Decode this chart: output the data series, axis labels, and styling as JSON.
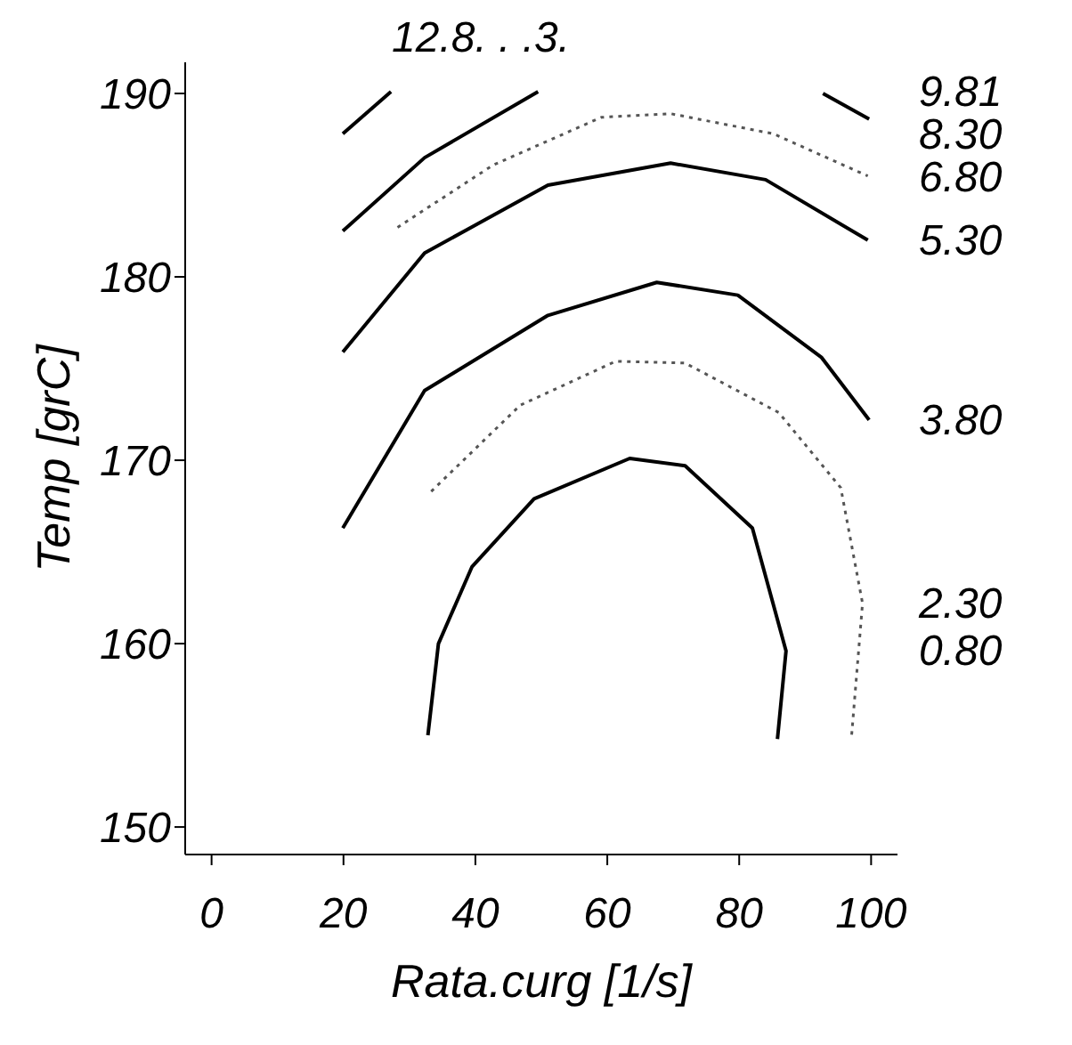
{
  "chart_data": {
    "type": "line",
    "xlabel": "Rata.curg [1/s]",
    "ylabel": "Temp [grC]",
    "xlim": [
      -4,
      104
    ],
    "xticks": [
      0,
      20,
      40,
      60,
      80,
      100
    ],
    "ylim": [
      148.5,
      191.7
    ],
    "yticks": [
      150,
      160,
      170,
      180,
      190
    ],
    "marker": "none",
    "annotations": [
      "12.8. . .3."
    ],
    "series": [
      {
        "name": "9.81",
        "color": "#000000",
        "line_style": "solid",
        "x": [
          19.9,
          27.2
        ],
        "values": [
          187.8,
          190.1
        ]
      },
      {
        "name": "8.30",
        "color": "#000000",
        "line_style": "solid",
        "x": [
          19.9,
          32.3,
          49.5,
          70,
          92.7,
          99.7
        ],
        "values": [
          182.5,
          186.5,
          190.1,
          null,
          190.0,
          188.6
        ]
      },
      {
        "name": "6.80",
        "color": "#555555",
        "line_style": "dotted",
        "x": [
          28.2,
          42.7,
          59.1,
          69.6,
          85.2,
          99.5
        ],
        "values": [
          182.7,
          186.1,
          188.7,
          188.9,
          187.8,
          185.5
        ]
      },
      {
        "name": "5.30",
        "color": "#000000",
        "line_style": "solid",
        "x": [
          19.9,
          32.3,
          51,
          69.6,
          84,
          99.5
        ],
        "values": [
          175.9,
          181.3,
          185.0,
          186.2,
          185.3,
          182.0
        ]
      },
      {
        "name": "3.80",
        "color": "#000000",
        "line_style": "solid",
        "x": [
          19.9,
          32.3,
          51,
          67.5,
          79.8,
          92.5,
          99.7
        ],
        "values": [
          166.3,
          173.8,
          177.9,
          179.7,
          179.0,
          175.6,
          172.2
        ]
      },
      {
        "name": "2.30",
        "color": "#555555",
        "line_style": "dotted",
        "x": [
          33.3,
          46.8,
          61.3,
          71.8,
          86,
          95.4,
          98.7,
          97
        ],
        "values": [
          168.3,
          173.0,
          175.4,
          175.3,
          172.6,
          168.5,
          162.2,
          154.8
        ]
      },
      {
        "name": "0.80",
        "color": "#000000",
        "line_style": "solid",
        "x": [
          32.8,
          34.4,
          39.5,
          48.9,
          63.4,
          71.8,
          82,
          87.1,
          85.8
        ],
        "values": [
          155.0,
          160.0,
          164.2,
          167.9,
          170.1,
          169.7,
          166.3,
          159.6,
          154.8
        ]
      }
    ]
  }
}
